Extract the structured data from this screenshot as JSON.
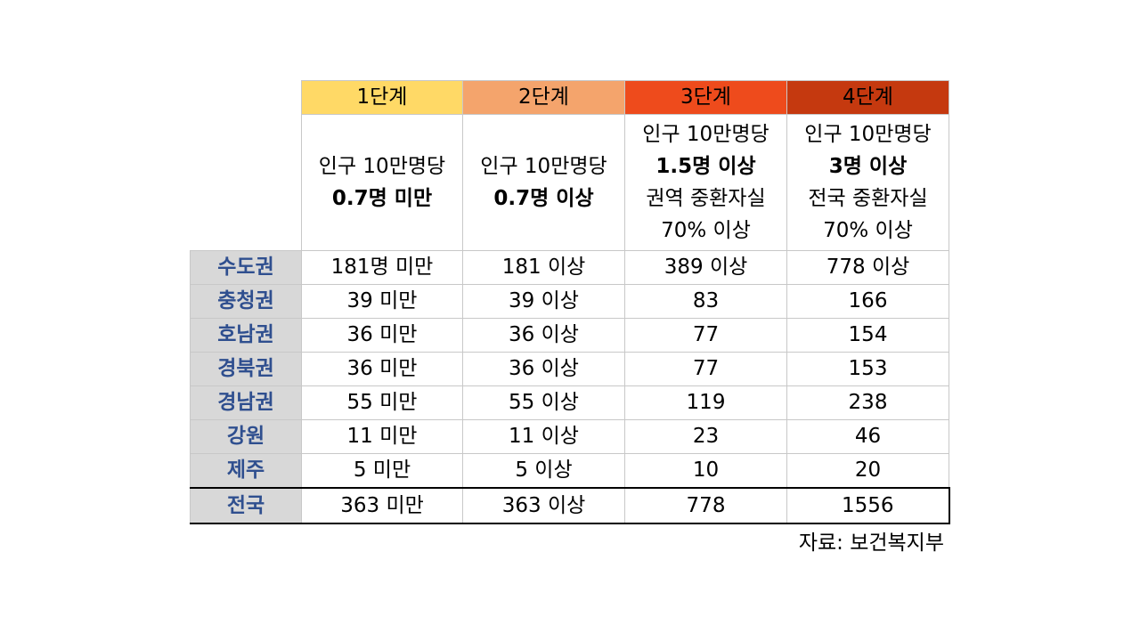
{
  "colors": {
    "stage1": "#ffd966",
    "stage2": "#f4a46c",
    "stage3": "#ee4b1c",
    "stage4": "#c5390f",
    "rowlabel_bg": "#d8d8d8",
    "rowlabel_text": "#2f4f8f"
  },
  "stages": [
    "1단계",
    "2단계",
    "3단계",
    "4단계"
  ],
  "criteria": [
    {
      "lines": [
        "인구 10만명당",
        "0.7명 미만"
      ],
      "bold": [
        false,
        true
      ]
    },
    {
      "lines": [
        "인구 10만명당",
        "0.7명 이상"
      ],
      "bold": [
        false,
        true
      ]
    },
    {
      "lines": [
        "인구 10만명당",
        "1.5명 이상",
        "권역 중환자실",
        "70% 이상"
      ],
      "bold": [
        false,
        true,
        false,
        false
      ]
    },
    {
      "lines": [
        "인구 10만명당",
        "3명 이상",
        "전국 중환자실",
        "70% 이상"
      ],
      "bold": [
        false,
        true,
        false,
        false
      ]
    }
  ],
  "rows": [
    {
      "region": "수도권",
      "values": [
        "181명 미만",
        "181 이상",
        "389 이상",
        "778 이상"
      ]
    },
    {
      "region": "충청권",
      "values": [
        "39 미만",
        "39 이상",
        "83",
        "166"
      ]
    },
    {
      "region": "호남권",
      "values": [
        "36 미만",
        "36 이상",
        "77",
        "154"
      ]
    },
    {
      "region": "경북권",
      "values": [
        "36 미만",
        "36 이상",
        "77",
        "153"
      ]
    },
    {
      "region": "경남권",
      "values": [
        "55 미만",
        "55 이상",
        "119",
        "238"
      ]
    },
    {
      "region": "강원",
      "values": [
        "11 미만",
        "11 이상",
        "23",
        "46"
      ]
    },
    {
      "region": "제주",
      "values": [
        "5 미만",
        "5 이상",
        "10",
        "20"
      ]
    }
  ],
  "total": {
    "region": "전국",
    "values": [
      "363 미만",
      "363 이상",
      "778",
      "1556"
    ]
  },
  "source": "자료: 보건복지부"
}
